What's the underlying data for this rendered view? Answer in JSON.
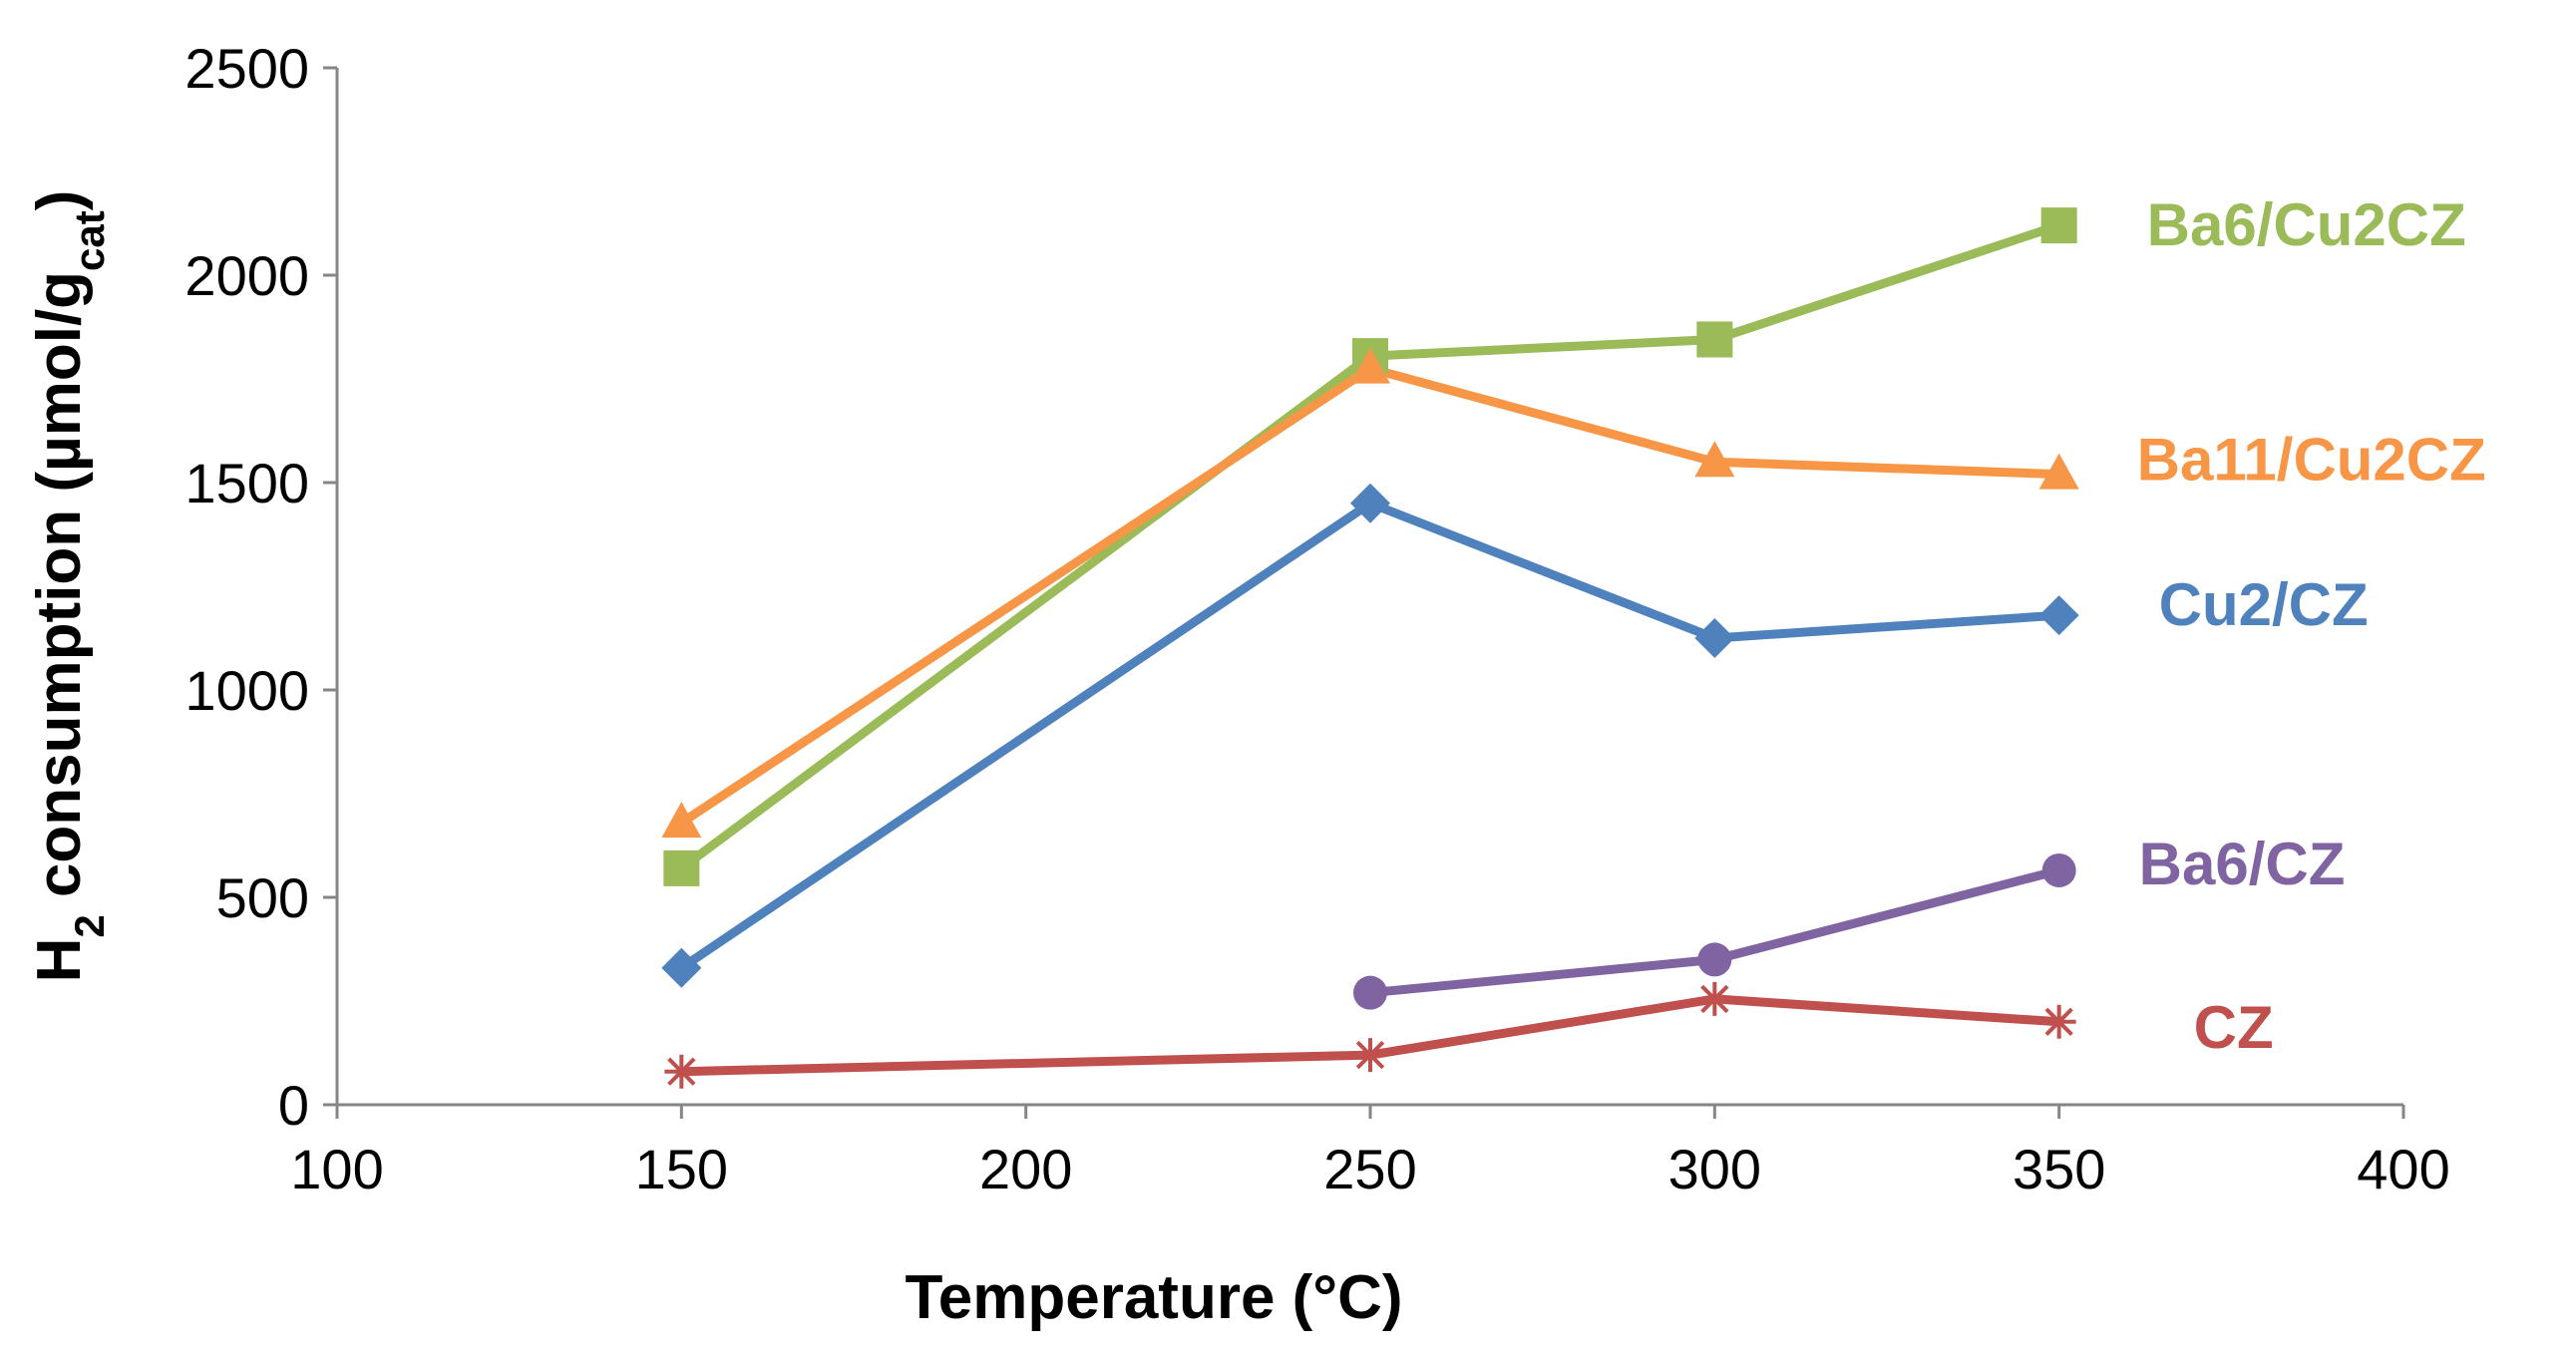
{
  "chart_data": {
    "type": "line",
    "xlabel": "Temperature (°C)",
    "ylabel": {
      "main": "H",
      "sub1": "2",
      "mid": " consumption (µmol/g",
      "sub2": "cat",
      "end": ")"
    },
    "xlim": [
      100,
      400
    ],
    "ylim": [
      0,
      2500
    ],
    "xticks": [
      100,
      150,
      200,
      250,
      300,
      350,
      400
    ],
    "yticks": [
      0,
      500,
      1000,
      1500,
      2000,
      2500
    ],
    "grid": false,
    "legend": "inline labels at right end of each series",
    "series": [
      {
        "name": "Ba6/Cu2CZ",
        "color": "#9BBB59",
        "marker": "square",
        "points": [
          {
            "x": 150,
            "y": 570
          },
          {
            "x": 250,
            "y": 1805
          },
          {
            "x": 300,
            "y": 1845
          },
          {
            "x": 350,
            "y": 2120
          }
        ]
      },
      {
        "name": "Ba11/Cu2CZ",
        "color": "#F79646",
        "marker": "triangle",
        "points": [
          {
            "x": 150,
            "y": 680
          },
          {
            "x": 250,
            "y": 1775
          },
          {
            "x": 300,
            "y": 1550
          },
          {
            "x": 350,
            "y": 1520
          }
        ]
      },
      {
        "name": "Cu2/CZ",
        "color": "#4F81BD",
        "marker": "diamond",
        "points": [
          {
            "x": 150,
            "y": 330
          },
          {
            "x": 250,
            "y": 1450
          },
          {
            "x": 300,
            "y": 1125
          },
          {
            "x": 350,
            "y": 1180
          }
        ]
      },
      {
        "name": "Ba6/CZ",
        "color": "#8064A2",
        "marker": "circle",
        "points": [
          {
            "x": 250,
            "y": 270
          },
          {
            "x": 300,
            "y": 350
          },
          {
            "x": 350,
            "y": 565
          }
        ]
      },
      {
        "name": "CZ",
        "color": "#C0504D",
        "marker": "star",
        "points": [
          {
            "x": 150,
            "y": 80
          },
          {
            "x": 250,
            "y": 120
          },
          {
            "x": 300,
            "y": 255
          },
          {
            "x": 350,
            "y": 200
          }
        ]
      }
    ]
  }
}
